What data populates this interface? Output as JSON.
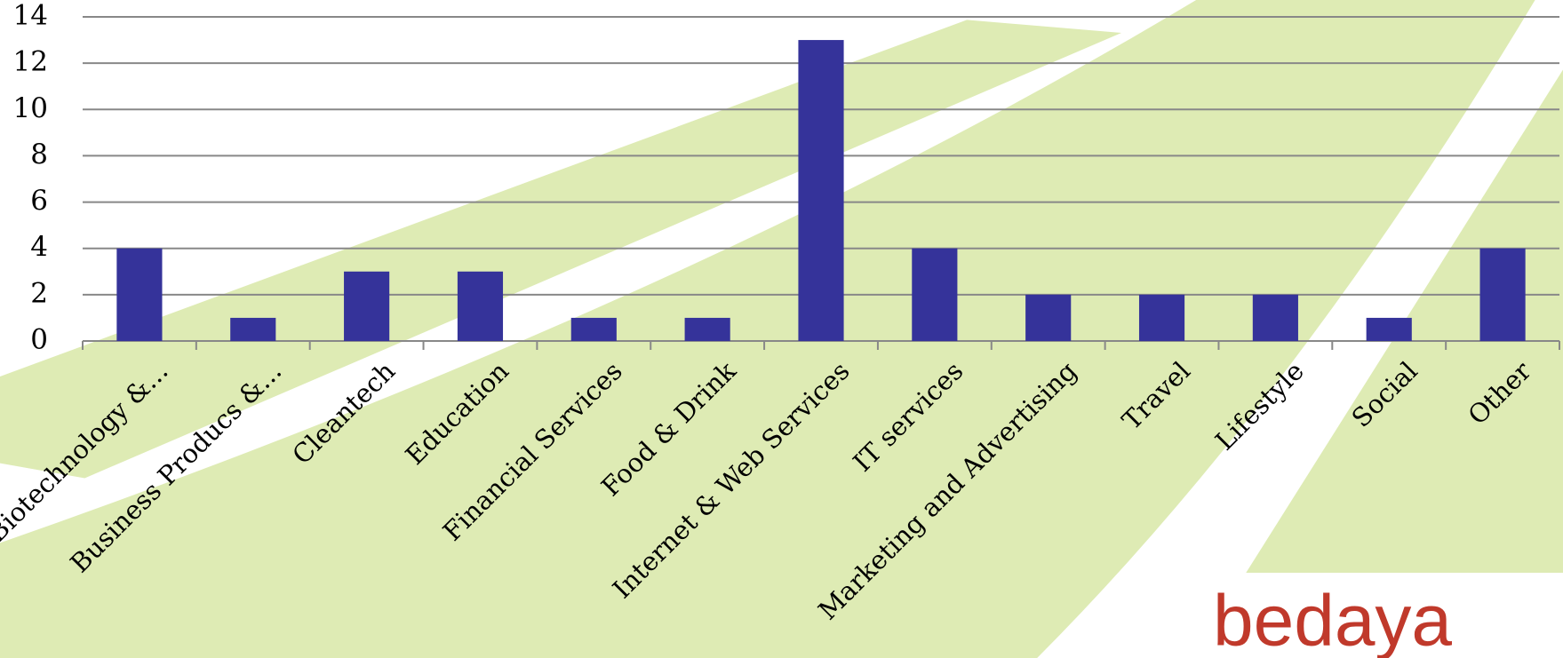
{
  "chart_data": {
    "type": "bar",
    "categories": [
      "Biotechnology &...",
      "Business Producs &...",
      "Cleantech",
      "Education",
      "Financial Services",
      "Food & Drink",
      "Internet & Web Services",
      "IT services",
      "Marketing and Advertising",
      "Travel",
      "Lifestyle",
      "Social",
      "Other"
    ],
    "values": [
      4,
      1,
      3,
      3,
      1,
      1,
      13,
      4,
      2,
      2,
      2,
      1,
      4
    ],
    "color": "#35339a",
    "ylim": [
      0,
      14
    ],
    "yticks": [
      0,
      2,
      4,
      6,
      8,
      10,
      12,
      14
    ],
    "grid": true,
    "annotations": [
      "bedaya"
    ]
  }
}
